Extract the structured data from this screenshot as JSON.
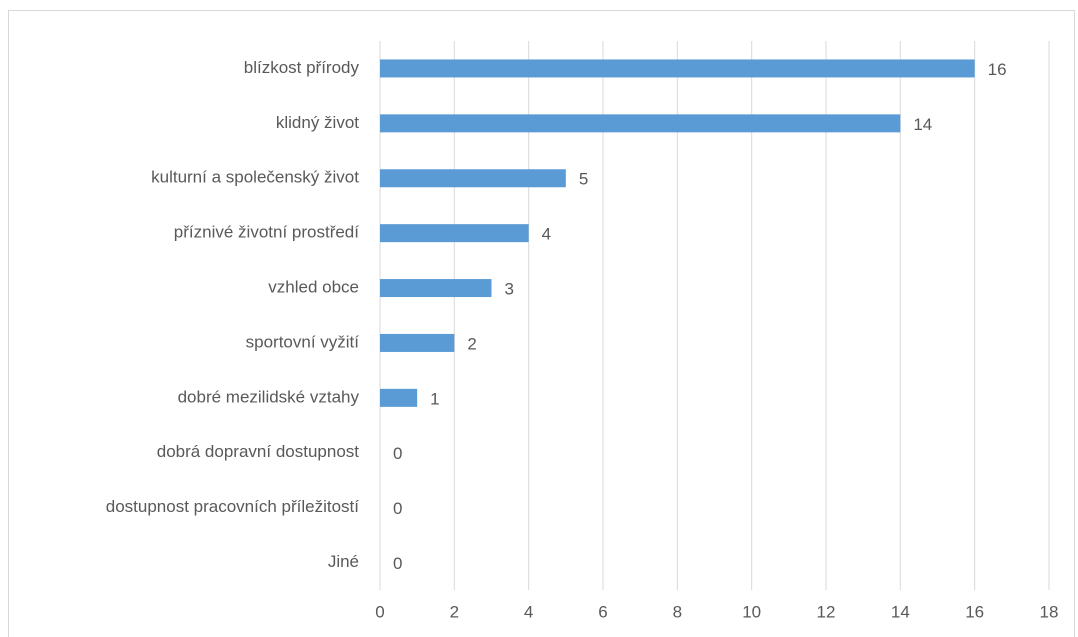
{
  "chart_data": {
    "type": "bar",
    "categories": [
      "blízkost přírody",
      "klidný život",
      "kulturní a společenský život",
      "příznivé životní prostředí",
      "vzhled obce",
      "sportovní vyžití",
      "dobré mezilidské vztahy",
      "dobrá dopravní dostupnost",
      "dostupnost pracovních příležitostí",
      "Jiné"
    ],
    "values": [
      16,
      14,
      5,
      4,
      3,
      2,
      1,
      0,
      0,
      0
    ],
    "color": "#5b9bd5",
    "xlim": [
      0,
      18
    ],
    "xticks": [
      0,
      2,
      4,
      6,
      8,
      10,
      12,
      14,
      16,
      18
    ],
    "grid": true
  }
}
